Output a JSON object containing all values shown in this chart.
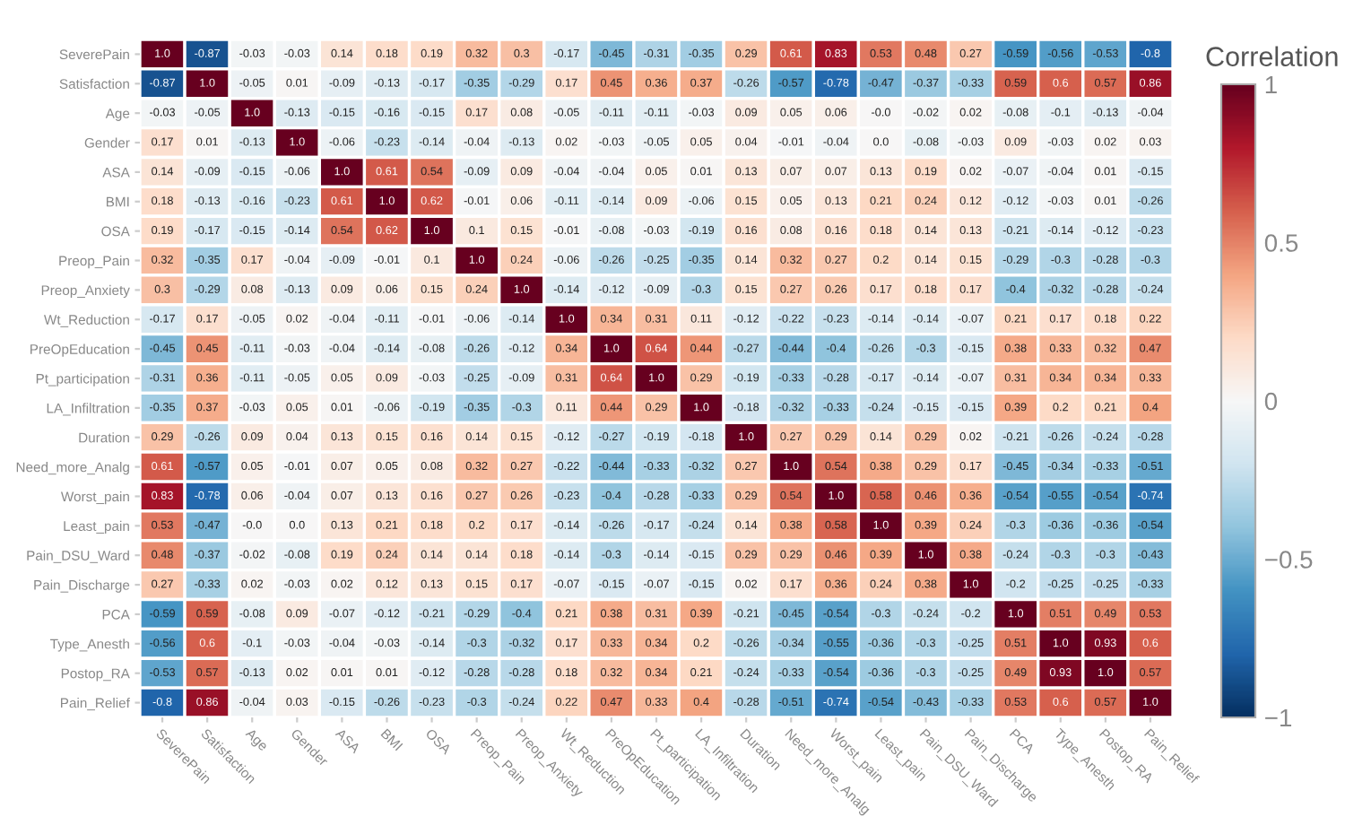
{
  "chart_data": {
    "type": "heatmap",
    "clabel": "Correlation",
    "clim": [
      -1,
      1
    ],
    "cticks": [
      1,
      0.5,
      0,
      {
        "value": -0.5,
        "label": "−0.5"
      },
      {
        "value": -1,
        "label": "−1"
      }
    ],
    "categories": [
      "SeverePain",
      "Satisfaction",
      "Age",
      "Gender",
      "ASA",
      "BMI",
      "OSA",
      "Preop_Pain",
      "Preop_Anxiety",
      "Wt_Reduction",
      "PreOpEducation",
      "Pt_participation",
      "LA_Infiltration",
      "Duration",
      "Need_more_Analg",
      "Worst_pain",
      "Least_pain",
      "Pain_DSU_Ward",
      "Pain_Discharge",
      "PCA",
      "Type_Anesth",
      "Postop_RA",
      "Pain_Relief"
    ],
    "y_categories": [
      "SeverePain",
      "Satisfaction",
      "Age",
      "Gender",
      "ASA",
      "BMI",
      "OSA",
      "Preop_Pain",
      "Preop_Anxiety",
      "Wt_Reduction",
      "PreOpEducation",
      "Pt_participation",
      "LA_Infiltration",
      "Duration",
      "Need_more_Analg",
      "Worst_pain",
      "Least_pain",
      "Pain_DSU_Ward",
      "Pain_Discharge",
      "PCA",
      "Type_Anesth",
      "Postop_RA",
      "Pain_Relief"
    ],
    "cells": [
      [
        1.0,
        -0.87,
        -0.03,
        -0.03,
        0.14,
        0.18,
        0.19,
        0.32,
        0.3,
        -0.17,
        -0.45,
        -0.31,
        -0.35,
        0.29,
        0.61,
        0.83,
        0.53,
        0.48,
        0.27,
        -0.59,
        -0.56,
        -0.53,
        -0.8
      ],
      [
        -0.87,
        1.0,
        -0.05,
        0.01,
        -0.09,
        -0.13,
        -0.17,
        -0.35,
        -0.29,
        0.17,
        0.45,
        0.36,
        0.37,
        -0.26,
        -0.57,
        -0.78,
        -0.47,
        -0.37,
        -0.33,
        0.59,
        0.6,
        0.57,
        0.86
      ],
      [
        -0.03,
        -0.05,
        1.0,
        -0.13,
        -0.15,
        -0.16,
        -0.15,
        0.17,
        0.08,
        -0.05,
        -0.11,
        -0.11,
        -0.03,
        0.09,
        0.05,
        0.06,
        0.0,
        -0.02,
        0.02,
        -0.08,
        -0.1,
        -0.13,
        -0.04
      ],
      [
        0.17,
        0.01,
        -0.13,
        1.0,
        -0.06,
        -0.23,
        -0.14,
        -0.04,
        -0.13,
        0.02,
        -0.03,
        -0.05,
        0.05,
        0.04,
        -0.01,
        -0.04,
        0.0,
        -0.08,
        -0.03,
        0.09,
        -0.03,
        0.02,
        0.03
      ],
      [
        0.14,
        -0.09,
        -0.15,
        -0.06,
        1.0,
        0.61,
        0.54,
        -0.09,
        0.09,
        -0.04,
        -0.04,
        0.05,
        0.01,
        0.13,
        0.07,
        0.07,
        0.13,
        0.19,
        0.02,
        -0.07,
        -0.04,
        0.01,
        -0.15
      ],
      [
        0.18,
        -0.13,
        -0.16,
        -0.23,
        0.61,
        1.0,
        0.62,
        -0.01,
        0.06,
        -0.11,
        -0.14,
        0.09,
        -0.06,
        0.15,
        0.05,
        0.13,
        0.21,
        0.24,
        0.12,
        -0.12,
        -0.03,
        0.01,
        -0.26
      ],
      [
        0.19,
        -0.17,
        -0.15,
        -0.14,
        0.54,
        0.62,
        1.0,
        0.1,
        0.15,
        -0.01,
        -0.08,
        -0.03,
        -0.19,
        0.16,
        0.08,
        0.16,
        0.18,
        0.14,
        0.13,
        -0.21,
        -0.14,
        -0.12,
        -0.23
      ],
      [
        0.32,
        -0.35,
        0.17,
        -0.04,
        -0.09,
        -0.01,
        0.1,
        1.0,
        0.24,
        -0.06,
        -0.26,
        -0.25,
        -0.35,
        0.14,
        0.32,
        0.27,
        0.2,
        0.14,
        0.15,
        -0.29,
        -0.3,
        -0.28,
        -0.3
      ],
      [
        0.3,
        -0.29,
        0.08,
        -0.13,
        0.09,
        0.06,
        0.15,
        0.24,
        1.0,
        -0.14,
        -0.12,
        -0.09,
        -0.3,
        0.15,
        0.27,
        0.26,
        0.17,
        0.18,
        0.17,
        -0.4,
        -0.32,
        -0.28,
        -0.24
      ],
      [
        -0.17,
        0.17,
        -0.05,
        0.02,
        -0.04,
        -0.11,
        -0.01,
        -0.06,
        -0.14,
        1.0,
        0.34,
        0.31,
        0.11,
        -0.12,
        -0.22,
        -0.23,
        -0.14,
        -0.14,
        -0.07,
        0.21,
        0.17,
        0.18,
        0.22
      ],
      [
        -0.45,
        0.45,
        -0.11,
        -0.03,
        -0.04,
        -0.14,
        -0.08,
        -0.26,
        -0.12,
        0.34,
        1.0,
        0.64,
        0.44,
        -0.27,
        -0.44,
        -0.4,
        -0.26,
        -0.3,
        -0.15,
        0.38,
        0.33,
        0.32,
        0.47
      ],
      [
        -0.31,
        0.36,
        -0.11,
        -0.05,
        0.05,
        0.09,
        -0.03,
        -0.25,
        -0.09,
        0.31,
        0.64,
        1.0,
        0.29,
        -0.19,
        -0.33,
        -0.28,
        -0.17,
        -0.14,
        -0.07,
        0.31,
        0.34,
        0.34,
        0.33
      ],
      [
        -0.35,
        0.37,
        -0.03,
        0.05,
        0.01,
        -0.06,
        -0.19,
        -0.35,
        -0.3,
        0.11,
        0.44,
        0.29,
        1.0,
        -0.18,
        -0.32,
        -0.33,
        -0.24,
        -0.15,
        -0.15,
        0.39,
        0.2,
        0.21,
        0.4
      ],
      [
        0.29,
        -0.26,
        0.09,
        0.04,
        0.13,
        0.15,
        0.16,
        0.14,
        0.15,
        -0.12,
        -0.27,
        -0.19,
        -0.18,
        1.0,
        0.27,
        0.29,
        0.14,
        0.29,
        0.02,
        -0.21,
        -0.26,
        -0.24,
        -0.28
      ],
      [
        0.61,
        -0.57,
        0.05,
        -0.01,
        0.07,
        0.05,
        0.08,
        0.32,
        0.27,
        -0.22,
        -0.44,
        -0.33,
        -0.32,
        0.27,
        1.0,
        0.54,
        0.38,
        0.29,
        0.17,
        -0.45,
        -0.34,
        -0.33,
        -0.51
      ],
      [
        0.83,
        -0.78,
        0.06,
        -0.04,
        0.07,
        0.13,
        0.16,
        0.27,
        0.26,
        -0.23,
        -0.4,
        -0.28,
        -0.33,
        0.29,
        0.54,
        1.0,
        0.58,
        0.46,
        0.36,
        -0.54,
        -0.55,
        -0.54,
        -0.74
      ],
      [
        0.53,
        -0.47,
        0.0,
        0.0,
        0.13,
        0.21,
        0.18,
        0.2,
        0.17,
        -0.14,
        -0.26,
        -0.17,
        -0.24,
        0.14,
        0.38,
        0.58,
        1.0,
        0.39,
        0.24,
        -0.3,
        -0.36,
        -0.36,
        -0.54
      ],
      [
        0.48,
        -0.37,
        -0.02,
        -0.08,
        0.19,
        0.24,
        0.14,
        0.14,
        0.18,
        -0.14,
        -0.3,
        -0.14,
        -0.15,
        0.29,
        0.29,
        0.46,
        0.39,
        1.0,
        0.38,
        -0.24,
        -0.3,
        -0.3,
        -0.43
      ],
      [
        0.27,
        -0.33,
        0.02,
        -0.03,
        0.02,
        0.12,
        0.13,
        0.15,
        0.17,
        -0.07,
        -0.15,
        -0.07,
        -0.15,
        0.02,
        0.17,
        0.36,
        0.24,
        0.38,
        1.0,
        -0.2,
        -0.25,
        -0.25,
        -0.33
      ],
      [
        -0.59,
        0.59,
        -0.08,
        0.09,
        -0.07,
        -0.12,
        -0.21,
        -0.29,
        -0.4,
        0.21,
        0.38,
        0.31,
        0.39,
        -0.21,
        -0.45,
        -0.54,
        -0.3,
        -0.24,
        -0.2,
        1.0,
        0.51,
        0.49,
        0.53
      ],
      [
        -0.56,
        0.6,
        -0.1,
        -0.03,
        -0.04,
        -0.03,
        -0.14,
        -0.3,
        -0.32,
        0.17,
        0.33,
        0.34,
        0.2,
        -0.26,
        -0.34,
        -0.55,
        -0.36,
        -0.3,
        -0.25,
        0.51,
        1.0,
        0.93,
        0.6
      ],
      [
        -0.53,
        0.57,
        -0.13,
        0.02,
        0.01,
        0.01,
        -0.12,
        -0.28,
        -0.28,
        0.18,
        0.32,
        0.34,
        0.21,
        -0.24,
        -0.33,
        -0.54,
        -0.36,
        -0.3,
        -0.25,
        0.49,
        0.93,
        1.0,
        0.57
      ],
      [
        -0.8,
        0.86,
        -0.04,
        0.03,
        -0.15,
        -0.26,
        -0.23,
        -0.3,
        -0.24,
        0.22,
        0.47,
        0.33,
        0.4,
        -0.28,
        -0.51,
        -0.74,
        -0.54,
        -0.43,
        -0.33,
        0.53,
        0.6,
        0.57,
        1.0
      ]
    ],
    "cell_labels": [
      [
        "1.0",
        "-0.87",
        "-0.03",
        "-0.03",
        "0.14",
        "0.18",
        "0.19",
        "0.32",
        "0.3",
        "-0.17",
        "-0.45",
        "-0.31",
        "-0.35",
        "0.29",
        "0.61",
        "0.83",
        "0.53",
        "0.48",
        "0.27",
        "-0.59",
        "-0.56",
        "-0.53",
        "-0.8"
      ],
      [
        "-0.87",
        "1.0",
        "-0.05",
        "0.01",
        "-0.09",
        "-0.13",
        "-0.17",
        "-0.35",
        "-0.29",
        "0.17",
        "0.45",
        "0.36",
        "0.37",
        "-0.26",
        "-0.57",
        "-0.78",
        "-0.47",
        "-0.37",
        "-0.33",
        "0.59",
        "0.6",
        "0.57",
        "0.86"
      ],
      [
        "-0.03",
        "-0.05",
        "1.0",
        "-0.13",
        "-0.15",
        "-0.16",
        "-0.15",
        "0.17",
        "0.08",
        "-0.05",
        "-0.11",
        "-0.11",
        "-0.03",
        "0.09",
        "0.05",
        "0.06",
        "-0.0",
        "-0.02",
        "0.02",
        "-0.08",
        "-0.1",
        "-0.13",
        "-0.04"
      ],
      [
        "0.17",
        "0.01",
        "-0.13",
        "1.0",
        "-0.06",
        "-0.23",
        "-0.14",
        "-0.04",
        "-0.13",
        "0.02",
        "-0.03",
        "-0.05",
        "0.05",
        "0.04",
        "-0.01",
        "-0.04",
        "0.0",
        "-0.08",
        "-0.03",
        "0.09",
        "-0.03",
        "0.02",
        "0.03"
      ],
      [
        "0.14",
        "-0.09",
        "-0.15",
        "-0.06",
        "1.0",
        "0.61",
        "0.54",
        "-0.09",
        "0.09",
        "-0.04",
        "-0.04",
        "0.05",
        "0.01",
        "0.13",
        "0.07",
        "0.07",
        "0.13",
        "0.19",
        "0.02",
        "-0.07",
        "-0.04",
        "0.01",
        "-0.15"
      ],
      [
        "0.18",
        "-0.13",
        "-0.16",
        "-0.23",
        "0.61",
        "1.0",
        "0.62",
        "-0.01",
        "0.06",
        "-0.11",
        "-0.14",
        "0.09",
        "-0.06",
        "0.15",
        "0.05",
        "0.13",
        "0.21",
        "0.24",
        "0.12",
        "-0.12",
        "-0.03",
        "0.01",
        "-0.26"
      ],
      [
        "0.19",
        "-0.17",
        "-0.15",
        "-0.14",
        "0.54",
        "0.62",
        "1.0",
        "0.1",
        "0.15",
        "-0.01",
        "-0.08",
        "-0.03",
        "-0.19",
        "0.16",
        "0.08",
        "0.16",
        "0.18",
        "0.14",
        "0.13",
        "-0.21",
        "-0.14",
        "-0.12",
        "-0.23"
      ],
      [
        "0.32",
        "-0.35",
        "0.17",
        "-0.04",
        "-0.09",
        "-0.01",
        "0.1",
        "1.0",
        "0.24",
        "-0.06",
        "-0.26",
        "-0.25",
        "-0.35",
        "0.14",
        "0.32",
        "0.27",
        "0.2",
        "0.14",
        "0.15",
        "-0.29",
        "-0.3",
        "-0.28",
        "-0.3"
      ],
      [
        "0.3",
        "-0.29",
        "0.08",
        "-0.13",
        "0.09",
        "0.06",
        "0.15",
        "0.24",
        "1.0",
        "-0.14",
        "-0.12",
        "-0.09",
        "-0.3",
        "0.15",
        "0.27",
        "0.26",
        "0.17",
        "0.18",
        "0.17",
        "-0.4",
        "-0.32",
        "-0.28",
        "-0.24"
      ],
      [
        "-0.17",
        "0.17",
        "-0.05",
        "0.02",
        "-0.04",
        "-0.11",
        "-0.01",
        "-0.06",
        "-0.14",
        "1.0",
        "0.34",
        "0.31",
        "0.11",
        "-0.12",
        "-0.22",
        "-0.23",
        "-0.14",
        "-0.14",
        "-0.07",
        "0.21",
        "0.17",
        "0.18",
        "0.22"
      ],
      [
        "-0.45",
        "0.45",
        "-0.11",
        "-0.03",
        "-0.04",
        "-0.14",
        "-0.08",
        "-0.26",
        "-0.12",
        "0.34",
        "1.0",
        "0.64",
        "0.44",
        "-0.27",
        "-0.44",
        "-0.4",
        "-0.26",
        "-0.3",
        "-0.15",
        "0.38",
        "0.33",
        "0.32",
        "0.47"
      ],
      [
        "-0.31",
        "0.36",
        "-0.11",
        "-0.05",
        "0.05",
        "0.09",
        "-0.03",
        "-0.25",
        "-0.09",
        "0.31",
        "0.64",
        "1.0",
        "0.29",
        "-0.19",
        "-0.33",
        "-0.28",
        "-0.17",
        "-0.14",
        "-0.07",
        "0.31",
        "0.34",
        "0.34",
        "0.33"
      ],
      [
        "-0.35",
        "0.37",
        "-0.03",
        "0.05",
        "0.01",
        "-0.06",
        "-0.19",
        "-0.35",
        "-0.3",
        "0.11",
        "0.44",
        "0.29",
        "1.0",
        "-0.18",
        "-0.32",
        "-0.33",
        "-0.24",
        "-0.15",
        "-0.15",
        "0.39",
        "0.2",
        "0.21",
        "0.4"
      ],
      [
        "0.29",
        "-0.26",
        "0.09",
        "0.04",
        "0.13",
        "0.15",
        "0.16",
        "0.14",
        "0.15",
        "-0.12",
        "-0.27",
        "-0.19",
        "-0.18",
        "1.0",
        "0.27",
        "0.29",
        "0.14",
        "0.29",
        "0.02",
        "-0.21",
        "-0.26",
        "-0.24",
        "-0.28"
      ],
      [
        "0.61",
        "-0.57",
        "0.05",
        "-0.01",
        "0.07",
        "0.05",
        "0.08",
        "0.32",
        "0.27",
        "-0.22",
        "-0.44",
        "-0.33",
        "-0.32",
        "0.27",
        "1.0",
        "0.54",
        "0.38",
        "0.29",
        "0.17",
        "-0.45",
        "-0.34",
        "-0.33",
        "-0.51"
      ],
      [
        "0.83",
        "-0.78",
        "0.06",
        "-0.04",
        "0.07",
        "0.13",
        "0.16",
        "0.27",
        "0.26",
        "-0.23",
        "-0.4",
        "-0.28",
        "-0.33",
        "0.29",
        "0.54",
        "1.0",
        "0.58",
        "0.46",
        "0.36",
        "-0.54",
        "-0.55",
        "-0.54",
        "-0.74"
      ],
      [
        "0.53",
        "-0.47",
        "-0.0",
        "0.0",
        "0.13",
        "0.21",
        "0.18",
        "0.2",
        "0.17",
        "-0.14",
        "-0.26",
        "-0.17",
        "-0.24",
        "0.14",
        "0.38",
        "0.58",
        "1.0",
        "0.39",
        "0.24",
        "-0.3",
        "-0.36",
        "-0.36",
        "-0.54"
      ],
      [
        "0.48",
        "-0.37",
        "-0.02",
        "-0.08",
        "0.19",
        "0.24",
        "0.14",
        "0.14",
        "0.18",
        "-0.14",
        "-0.3",
        "-0.14",
        "-0.15",
        "0.29",
        "0.29",
        "0.46",
        "0.39",
        "1.0",
        "0.38",
        "-0.24",
        "-0.3",
        "-0.3",
        "-0.43"
      ],
      [
        "0.27",
        "-0.33",
        "0.02",
        "-0.03",
        "0.02",
        "0.12",
        "0.13",
        "0.15",
        "0.17",
        "-0.07",
        "-0.15",
        "-0.07",
        "-0.15",
        "0.02",
        "0.17",
        "0.36",
        "0.24",
        "0.38",
        "1.0",
        "-0.2",
        "-0.25",
        "-0.25",
        "-0.33"
      ],
      [
        "-0.59",
        "0.59",
        "-0.08",
        "0.09",
        "-0.07",
        "-0.12",
        "-0.21",
        "-0.29",
        "-0.4",
        "0.21",
        "0.38",
        "0.31",
        "0.39",
        "-0.21",
        "-0.45",
        "-0.54",
        "-0.3",
        "-0.24",
        "-0.2",
        "1.0",
        "0.51",
        "0.49",
        "0.53"
      ],
      [
        "-0.56",
        "0.6",
        "-0.1",
        "-0.03",
        "-0.04",
        "-0.03",
        "-0.14",
        "-0.3",
        "-0.32",
        "0.17",
        "0.33",
        "0.34",
        "0.2",
        "-0.26",
        "-0.34",
        "-0.55",
        "-0.36",
        "-0.3",
        "-0.25",
        "0.51",
        "1.0",
        "0.93",
        "0.6"
      ],
      [
        "-0.53",
        "0.57",
        "-0.13",
        "0.02",
        "0.01",
        "0.01",
        "-0.12",
        "-0.28",
        "-0.28",
        "0.18",
        "0.32",
        "0.34",
        "0.21",
        "-0.24",
        "-0.33",
        "-0.54",
        "-0.36",
        "-0.3",
        "-0.25",
        "0.49",
        "0.93",
        "1.0",
        "0.57"
      ],
      [
        "-0.8",
        "0.86",
        "-0.04",
        "0.03",
        "-0.15",
        "-0.26",
        "-0.23",
        "-0.3",
        "-0.24",
        "0.22",
        "0.47",
        "0.33",
        "0.4",
        "-0.28",
        "-0.51",
        "-0.74",
        "-0.54",
        "-0.43",
        "-0.33",
        "0.53",
        "0.6",
        "0.57",
        "1.0"
      ]
    ]
  }
}
